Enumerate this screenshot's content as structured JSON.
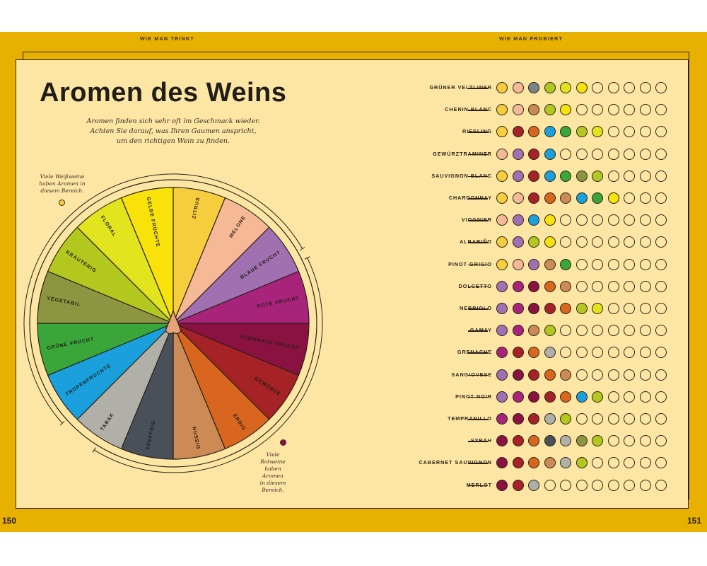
{
  "header": {
    "left": "WIE MAN TRINKT",
    "right": "WIE MAN PROBIERT"
  },
  "page_numbers": {
    "left": "150",
    "right": "151"
  },
  "title": "Aromen des Weins",
  "intro": [
    "Aromen finden sich sehr oft im Geschmack wieder.",
    "Achten Sie darauf, was Ihren Gaumen anspricht,",
    "um den richtigen Wein zu finden."
  ],
  "notes": {
    "white": [
      "Viele Weißweine",
      "haben Aromen in",
      "diesem Bereich."
    ],
    "red": [
      "Viele Rotweine",
      "haben Aromen",
      "in diesem",
      "Bereich."
    ]
  },
  "colors": {
    "band": "#e8b100",
    "sheet": "#fde6a4",
    "ink": "#231d18"
  },
  "wheel": {
    "segments": [
      {
        "label": "ZITRUS",
        "color": "#f6cd3d"
      },
      {
        "label": "MELONE",
        "color": "#f6b996"
      },
      {
        "label": "BLAUE FRUCHT",
        "color": "#a070b0"
      },
      {
        "label": "ROTE FRUCHT",
        "color": "#a8237a"
      },
      {
        "label": "SCHWARZE FRUCHT",
        "color": "#8a1240"
      },
      {
        "label": "GEWÜRZE",
        "color": "#a52226"
      },
      {
        "label": "ERDIG",
        "color": "#d9661f"
      },
      {
        "label": "NUSSIG",
        "color": "#cc8a55"
      },
      {
        "label": "PFEFFRIG",
        "color": "#4a505a"
      },
      {
        "label": "TABAK",
        "color": "#b0b0a8"
      },
      {
        "label": "TROPENFRÜCHTE",
        "color": "#1aa0dc"
      },
      {
        "label": "GRÜNE FRUCHT",
        "color": "#3aa63a"
      },
      {
        "label": "VEGETABIL",
        "color": "#8c9640"
      },
      {
        "label": "KRÄUTERIG",
        "color": "#b3c81e"
      },
      {
        "label": "FLORAL",
        "color": "#e2e51e"
      },
      {
        "label": "GELBE FRÜCHTE",
        "color": "#f8e20a"
      }
    ]
  },
  "aroma_colors": {
    "citrus": "#f6cd3d",
    "melon": "#f6b996",
    "blue": "#a070b0",
    "red": "#a8237a",
    "black": "#8a1240",
    "spice": "#a52226",
    "earth": "#d9661f",
    "nut": "#cc8a55",
    "pepper": "#4a505a",
    "tobacco": "#b0b0a8",
    "tropical": "#1aa0dc",
    "green": "#3aa63a",
    "veg": "#8c9640",
    "herb": "#b3c81e",
    "floral": "#e2e51e",
    "yellow": "#f8e20a",
    "slate": "#7b8388"
  },
  "wines": [
    {
      "name": "GRÜNER VELTLINER",
      "dots": [
        "citrus",
        "melon",
        "slate",
        "herb",
        "floral",
        "yellow"
      ]
    },
    {
      "name": "CHENIN BLANC",
      "dots": [
        "citrus",
        "melon",
        "nut",
        "herb",
        "yellow"
      ]
    },
    {
      "name": "RIESLING",
      "dots": [
        "citrus",
        "spice",
        "earth",
        "tropical",
        "green",
        "herb",
        "floral"
      ]
    },
    {
      "name": "GEWÜRZTRAMINER",
      "dots": [
        "melon",
        "blue",
        "spice",
        "tropical"
      ]
    },
    {
      "name": "SAUVIGNON BLANC",
      "dots": [
        "citrus",
        "blue",
        "spice",
        "tropical",
        "green",
        "veg",
        "herb"
      ]
    },
    {
      "name": "CHARDONNAY",
      "dots": [
        "citrus",
        "melon",
        "spice",
        "earth",
        "nut",
        "tropical",
        "green",
        "yellow"
      ]
    },
    {
      "name": "VIOGNIER",
      "dots": [
        "melon",
        "blue",
        "tropical",
        "yellow"
      ]
    },
    {
      "name": "ALBARIÑO",
      "dots": [
        "citrus",
        "blue",
        "herb",
        "yellow"
      ]
    },
    {
      "name": "PINOT GRIGIO",
      "dots": [
        "citrus",
        "melon",
        "blue",
        "nut",
        "green"
      ]
    },
    {
      "name": "DOLCETTO",
      "dots": [
        "blue",
        "red",
        "black",
        "earth",
        "nut"
      ]
    },
    {
      "name": "NEBBIOLO",
      "dots": [
        "blue",
        "red",
        "black",
        "spice",
        "earth",
        "herb",
        "floral"
      ]
    },
    {
      "name": "GAMAY",
      "dots": [
        "blue",
        "red",
        "nut",
        "herb"
      ]
    },
    {
      "name": "GRENACHE",
      "dots": [
        "red",
        "spice",
        "earth",
        "tobacco"
      ]
    },
    {
      "name": "SANGIOVESE",
      "dots": [
        "blue",
        "black",
        "spice",
        "earth",
        "nut"
      ]
    },
    {
      "name": "PINOT NOIR",
      "dots": [
        "blue",
        "red",
        "black",
        "spice",
        "earth",
        "tropical",
        "herb"
      ]
    },
    {
      "name": "TEMPRANILLO",
      "dots": [
        "red",
        "black",
        "spice",
        "tobacco",
        "herb"
      ]
    },
    {
      "name": "SYRAH",
      "dots": [
        "black",
        "spice",
        "earth",
        "pepper",
        "tobacco",
        "veg",
        "herb"
      ]
    },
    {
      "name": "CABERNET SAUVIGNON",
      "dots": [
        "black",
        "spice",
        "earth",
        "nut",
        "tobacco",
        "herb"
      ]
    },
    {
      "name": "MERLOT",
      "dots": [
        "black",
        "spice",
        "tobacco"
      ]
    }
  ],
  "total_dots_per_row": 11
}
